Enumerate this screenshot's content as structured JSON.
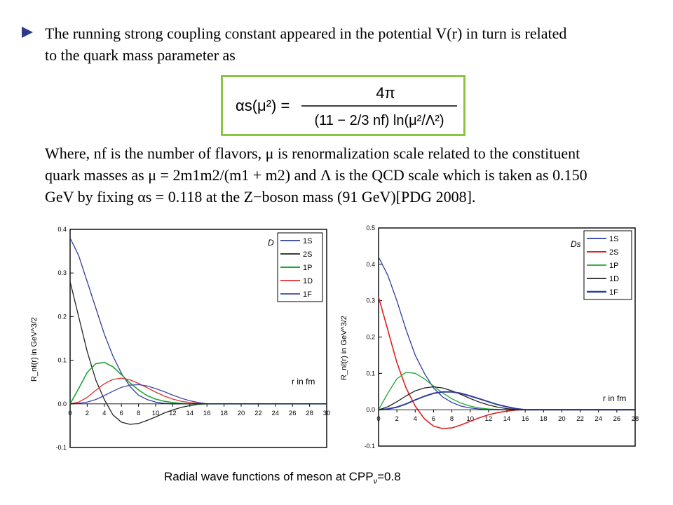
{
  "slide": {
    "paragraph1_line1": "The running strong coupling constant appeared in the potential V(r) in turn is related",
    "paragraph1_line2": "to the quark mass parameter as",
    "formula_lhs": "αs(μ²) =",
    "formula_numerator": "4π",
    "formula_denominator": "(11 − 2/3 nf) ln(μ²/Λ²)",
    "paragraph2_line1": "Where, nf is the number of flavors, μ is renormalization scale related to the constituent",
    "paragraph2_line2": "quark masses as μ = 2m1m2/(m1 + m2) and Λ is the QCD scale which is taken as 0.150",
    "paragraph2_line3": "GeV by fixing αs = 0.118 at the Z−boson mass (91 GeV)[PDG 2008].",
    "caption_main": "Radial wave functions of meson at CPP",
    "caption_sub": "ν",
    "caption_value": "=0.8",
    "bullet_color": "#2b3a8c",
    "box_color": "#8cc63f"
  },
  "chart_data": [
    {
      "type": "line",
      "title": "D",
      "xlabel": "r in fm",
      "ylabel": "R_nℓ(r) in GeV^3/2",
      "xlim": [
        0,
        30
      ],
      "ylim": [
        -0.1,
        0.4
      ],
      "xticks": [
        "0",
        "2",
        "4",
        "6",
        "8",
        "10",
        "12",
        "14",
        "16",
        "18",
        "20",
        "22",
        "24",
        "26",
        "28",
        "30"
      ],
      "yticks": [
        "0.4",
        "0.3",
        "0.2",
        "0.1",
        "0.0",
        "-0.1"
      ],
      "legend_position": "top-right",
      "series": [
        {
          "name": "1S",
          "color": "#2e3d9c",
          "width": 1.3,
          "x": [
            0,
            1,
            2,
            3,
            4,
            5,
            6,
            7,
            8,
            9,
            10,
            11,
            12,
            13,
            14,
            15,
            16,
            18,
            30
          ],
          "y": [
            0.38,
            0.34,
            0.28,
            0.22,
            0.16,
            0.11,
            0.07,
            0.04,
            0.02,
            0.01,
            0.004,
            0.001,
            0,
            0,
            0,
            0,
            0,
            0,
            0
          ]
        },
        {
          "name": "2S",
          "color": "#222222",
          "width": 1.3,
          "x": [
            0,
            1,
            2,
            3,
            4,
            5,
            6,
            7,
            8,
            9,
            10,
            11,
            12,
            13,
            14,
            15,
            16,
            18,
            30
          ],
          "y": [
            0.28,
            0.2,
            0.12,
            0.055,
            0.01,
            -0.025,
            -0.042,
            -0.047,
            -0.045,
            -0.038,
            -0.03,
            -0.021,
            -0.014,
            -0.008,
            -0.004,
            -0.001,
            0,
            0,
            0
          ]
        },
        {
          "name": "1P",
          "color": "#1ea532",
          "width": 1.6,
          "x": [
            0,
            1,
            2,
            3,
            4,
            5,
            6,
            7,
            8,
            9,
            10,
            11,
            12,
            13,
            14,
            15,
            16,
            18,
            30
          ],
          "y": [
            0,
            0.035,
            0.072,
            0.092,
            0.095,
            0.085,
            0.067,
            0.048,
            0.032,
            0.019,
            0.011,
            0.006,
            0.003,
            0.001,
            0,
            0,
            0,
            0,
            0
          ]
        },
        {
          "name": "1D",
          "color": "#e03030",
          "width": 1.3,
          "x": [
            0,
            1,
            2,
            3,
            4,
            5,
            6,
            7,
            8,
            9,
            10,
            11,
            12,
            13,
            14,
            15,
            16,
            18,
            30
          ],
          "y": [
            0,
            0.004,
            0.015,
            0.031,
            0.046,
            0.056,
            0.059,
            0.055,
            0.047,
            0.037,
            0.027,
            0.018,
            0.011,
            0.006,
            0.003,
            0.001,
            0,
            0,
            0
          ]
        },
        {
          "name": "1F",
          "color": "#3a4aa8",
          "width": 1.3,
          "x": [
            0,
            1,
            2,
            3,
            4,
            5,
            6,
            7,
            8,
            9,
            10,
            11,
            12,
            13,
            14,
            15,
            16,
            18,
            30
          ],
          "y": [
            0,
            0.001,
            0.004,
            0.01,
            0.019,
            0.029,
            0.038,
            0.043,
            0.044,
            0.041,
            0.035,
            0.028,
            0.02,
            0.013,
            0.007,
            0.003,
            0,
            0,
            0
          ]
        }
      ]
    },
    {
      "type": "line",
      "title": "Ds",
      "xlabel": "r in fm",
      "ylabel": "R_nℓ(r) in GeV^3/2",
      "xlim": [
        0,
        28
      ],
      "ylim": [
        -0.1,
        0.5
      ],
      "xticks": [
        "0",
        "2",
        "4",
        "6",
        "8",
        "10",
        "12",
        "14",
        "16",
        "18",
        "20",
        "22",
        "24",
        "26",
        "28"
      ],
      "yticks": [
        "0.5",
        "0.4",
        "0.3",
        "0.2",
        "0.1",
        "0.0",
        "-0.1"
      ],
      "legend_position": "top-right",
      "series": [
        {
          "name": "1S",
          "color": "#2e3d9c",
          "width": 1.3,
          "x": [
            0,
            1,
            2,
            3,
            4,
            5,
            6,
            7,
            8,
            9,
            10,
            11,
            12,
            13,
            14,
            15,
            16,
            28
          ],
          "y": [
            0.42,
            0.37,
            0.3,
            0.22,
            0.15,
            0.1,
            0.06,
            0.035,
            0.02,
            0.01,
            0.005,
            0.002,
            0,
            0,
            0,
            0,
            0,
            0
          ]
        },
        {
          "name": "2S",
          "color": "#e02020",
          "width": 1.6,
          "x": [
            0,
            1,
            2,
            3,
            4,
            5,
            6,
            7,
            8,
            9,
            10,
            11,
            12,
            13,
            14,
            15,
            16,
            28
          ],
          "y": [
            0.31,
            0.22,
            0.13,
            0.06,
            0.01,
            -0.025,
            -0.045,
            -0.052,
            -0.05,
            -0.042,
            -0.032,
            -0.022,
            -0.014,
            -0.008,
            -0.004,
            -0.001,
            0,
            0
          ]
        },
        {
          "name": "1P",
          "color": "#1ea532",
          "width": 1.3,
          "x": [
            0,
            1,
            2,
            3,
            4,
            5,
            6,
            7,
            8,
            9,
            10,
            11,
            12,
            13,
            14,
            15,
            16,
            28
          ],
          "y": [
            0,
            0.045,
            0.085,
            0.103,
            0.1,
            0.085,
            0.065,
            0.046,
            0.03,
            0.018,
            0.01,
            0.005,
            0.002,
            0.001,
            0,
            0,
            0,
            0
          ]
        },
        {
          "name": "1D",
          "color": "#222222",
          "width": 1.3,
          "x": [
            0,
            1,
            2,
            3,
            4,
            5,
            6,
            7,
            8,
            9,
            10,
            11,
            12,
            13,
            14,
            15,
            16,
            28
          ],
          "y": [
            0,
            0.008,
            0.022,
            0.038,
            0.052,
            0.06,
            0.063,
            0.06,
            0.052,
            0.042,
            0.031,
            0.021,
            0.013,
            0.007,
            0.003,
            0.001,
            0,
            0
          ]
        },
        {
          "name": "1F",
          "color": "#2e3d9c",
          "width": 2.0,
          "x": [
            0,
            1,
            2,
            3,
            4,
            5,
            6,
            7,
            8,
            9,
            10,
            11,
            12,
            13,
            14,
            15,
            16,
            28
          ],
          "y": [
            0,
            0.002,
            0.007,
            0.016,
            0.027,
            0.037,
            0.045,
            0.049,
            0.049,
            0.045,
            0.038,
            0.03,
            0.022,
            0.014,
            0.008,
            0.003,
            0,
            0
          ]
        }
      ]
    }
  ]
}
